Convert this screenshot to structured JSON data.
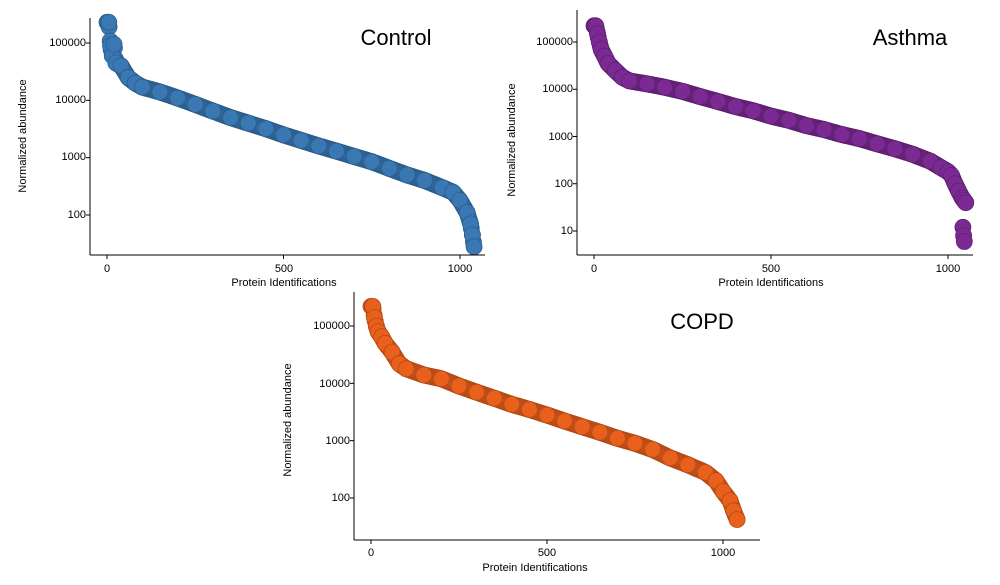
{
  "chart_data": [
    {
      "type": "scatter",
      "title": "Control",
      "xlabel": "Protein Identifications",
      "ylabel": "Normalized abundance",
      "yscale": "log",
      "xlim": [
        -40,
        1050
      ],
      "ylim": [
        15,
        330000
      ],
      "xticks": [
        0,
        500,
        1000
      ],
      "xtick_labels": [
        "0",
        "500",
        "1000"
      ],
      "yticks": [
        100,
        1000,
        10000,
        100000
      ],
      "ytick_labels": [
        "100",
        "1000",
        "10000",
        "100000"
      ],
      "color": "#3a78b4",
      "x": [
        5,
        10,
        15,
        20,
        25,
        40,
        60,
        80,
        100,
        150,
        200,
        250,
        300,
        350,
        400,
        450,
        500,
        550,
        600,
        650,
        700,
        750,
        800,
        850,
        900,
        950,
        980,
        1000,
        1020,
        1030,
        1035,
        1040
      ],
      "y": [
        230000,
        90000,
        60000,
        95000,
        45000,
        40000,
        25000,
        20000,
        17000,
        14000,
        11000,
        8500,
        6500,
        5000,
        4000,
        3200,
        2500,
        2000,
        1600,
        1300,
        1050,
        850,
        650,
        500,
        400,
        300,
        250,
        180,
        110,
        70,
        45,
        28
      ]
    },
    {
      "type": "scatter",
      "title": "Asthma",
      "xlabel": "Protein Identifications",
      "ylabel": "Normalized abundance",
      "yscale": "log",
      "xlim": [
        -40,
        1050
      ],
      "ylim": [
        2.5,
        330000
      ],
      "xticks": [
        0,
        500,
        1000
      ],
      "xtick_labels": [
        "0",
        "500",
        "1000"
      ],
      "yticks": [
        10,
        100,
        1000,
        10000,
        100000
      ],
      "ytick_labels": [
        "10",
        "100",
        "1000",
        "10000",
        "100000"
      ],
      "color": "#7b2a93",
      "x": [
        5,
        10,
        15,
        20,
        30,
        40,
        60,
        80,
        100,
        150,
        200,
        250,
        300,
        350,
        400,
        450,
        500,
        550,
        600,
        650,
        700,
        750,
        800,
        850,
        900,
        950,
        980,
        1000,
        1010,
        1020,
        1030,
        1040,
        1045,
        1050,
        1042,
        1044,
        1046
      ],
      "y": [
        220000,
        150000,
        100000,
        70000,
        50000,
        35000,
        25000,
        18000,
        15000,
        13000,
        11000,
        9000,
        7000,
        5500,
        4300,
        3500,
        2700,
        2200,
        1700,
        1400,
        1100,
        900,
        700,
        550,
        420,
        300,
        220,
        180,
        150,
        100,
        70,
        50,
        45,
        40,
        12,
        8,
        6
      ]
    },
    {
      "type": "scatter",
      "title": "COPD",
      "xlabel": "Protein Identifications",
      "ylabel": "Normalized abundance",
      "yscale": "log",
      "xlim": [
        -40,
        1110
      ],
      "ylim": [
        15,
        330000
      ],
      "xticks": [
        0,
        500,
        1000
      ],
      "xtick_labels": [
        "0",
        "500",
        "1000"
      ],
      "yticks": [
        100,
        1000,
        10000,
        100000
      ],
      "ytick_labels": [
        "100",
        "1000",
        "10000",
        "100000"
      ],
      "color": "#e8601c",
      "x": [
        5,
        10,
        15,
        20,
        30,
        40,
        60,
        80,
        100,
        150,
        200,
        250,
        300,
        350,
        400,
        450,
        500,
        550,
        600,
        650,
        700,
        750,
        800,
        850,
        900,
        950,
        980,
        1000,
        1020,
        1030,
        1040
      ],
      "y": [
        220000,
        140000,
        100000,
        80000,
        65000,
        50000,
        35000,
        22000,
        18000,
        14000,
        12000,
        9000,
        7000,
        5500,
        4300,
        3500,
        2800,
        2200,
        1750,
        1400,
        1100,
        900,
        700,
        500,
        380,
        280,
        200,
        130,
        90,
        60,
        42
      ]
    }
  ]
}
